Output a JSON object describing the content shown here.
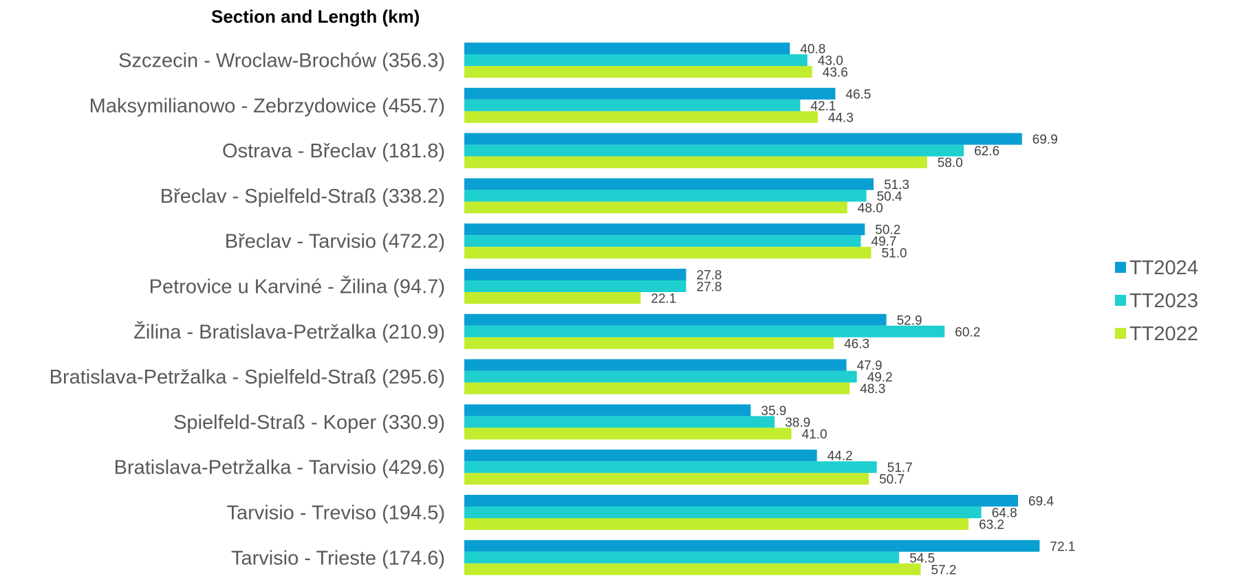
{
  "chart_data": {
    "type": "bar",
    "orientation": "horizontal",
    "title": "Section and Length (km)",
    "xlabel": "",
    "ylabel": "",
    "xlim": [
      0,
      80
    ],
    "grid": false,
    "legend_position": "right",
    "categories": [
      "Szczecin - Wroclaw-Brochów (356.3)",
      "Maksymilianowo - Zebrzydowice (455.7)",
      "Ostrava - Břeclav (181.8)",
      "Břeclav - Spielfeld-Straß (338.2)",
      "Břeclav - Tarvisio (472.2)",
      "Petrovice u Karviné - Žilina (94.7)",
      "Žilina - Bratislava-Petržalka (210.9)",
      "Bratislava-Petržalka - Spielfeld-Straß (295.6)",
      "Spielfeld-Straß - Koper (330.9)",
      "Bratislava-Petržalka - Tarvisio (429.6)",
      "Tarvisio - Treviso (194.5)",
      "Tarvisio - Trieste (174.6)"
    ],
    "series": [
      {
        "name": "TT2024",
        "color": "#0a9fd2",
        "values": [
          40.8,
          46.5,
          69.9,
          51.3,
          50.2,
          27.8,
          52.9,
          47.9,
          35.9,
          44.2,
          69.4,
          72.1
        ],
        "labels": [
          "40.8",
          "46.5",
          "69.9",
          "51.3",
          "50.2",
          "27.8",
          "52.9",
          "47.9",
          "35.9",
          "44.2",
          "69.4",
          "72.1"
        ]
      },
      {
        "name": "TT2023",
        "color": "#1fcfcf",
        "values": [
          43.0,
          42.1,
          62.6,
          50.4,
          49.7,
          27.8,
          60.2,
          49.2,
          38.9,
          51.7,
          64.8,
          54.5
        ],
        "labels": [
          "43.0",
          "42.1",
          "62.6",
          "50.4",
          "49.7",
          "27.8",
          "60.2",
          "49.2",
          "38.9",
          "51.7",
          "64.8",
          "54.5"
        ]
      },
      {
        "name": "TT2022",
        "color": "#c2ec2e",
        "values": [
          43.6,
          44.3,
          58.0,
          48.0,
          51.0,
          22.1,
          46.3,
          48.3,
          41.0,
          50.7,
          63.2,
          57.2
        ],
        "labels": [
          "43.6",
          "44.3",
          "58.0",
          "48.0",
          "51.0",
          "22.1",
          "46.3",
          "48.3",
          "41.0",
          "50.7",
          "63.2",
          "57.2"
        ]
      }
    ]
  }
}
